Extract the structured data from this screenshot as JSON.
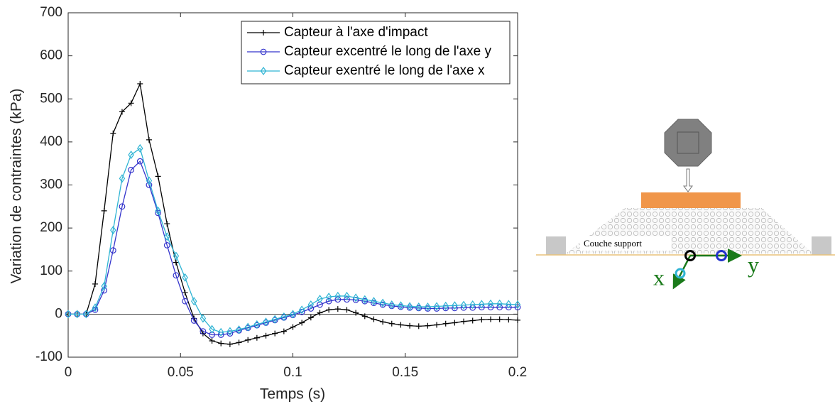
{
  "chart_data": {
    "type": "line",
    "xlabel": "Temps (s)",
    "ylabel": "Variation de contraintes (kPa)",
    "xlim": [
      0,
      0.2
    ],
    "ylim": [
      -100,
      700
    ],
    "xticks": [
      0,
      0.05,
      0.1,
      0.15,
      0.2
    ],
    "yticks": [
      -100,
      0,
      100,
      200,
      300,
      400,
      500,
      600,
      700
    ],
    "legend": "top-right",
    "x": [
      0,
      0.004,
      0.008,
      0.012,
      0.016,
      0.02,
      0.024,
      0.028,
      0.032,
      0.036,
      0.04,
      0.044,
      0.048,
      0.052,
      0.056,
      0.06,
      0.064,
      0.068,
      0.072,
      0.076,
      0.08,
      0.084,
      0.088,
      0.092,
      0.096,
      0.1,
      0.104,
      0.108,
      0.112,
      0.116,
      0.12,
      0.124,
      0.128,
      0.132,
      0.136,
      0.14,
      0.144,
      0.148,
      0.152,
      0.156,
      0.16,
      0.164,
      0.168,
      0.172,
      0.176,
      0.18,
      0.184,
      0.188,
      0.192,
      0.196,
      0.2
    ],
    "series": [
      {
        "name": "Capteur à l'axe d'impact",
        "color": "#000000",
        "marker": "+",
        "values": [
          0,
          0,
          0,
          70,
          240,
          420,
          470,
          490,
          535,
          405,
          320,
          210,
          120,
          50,
          -10,
          -45,
          -62,
          -68,
          -70,
          -66,
          -60,
          -55,
          -50,
          -45,
          -40,
          -30,
          -20,
          -8,
          3,
          10,
          12,
          10,
          3,
          -5,
          -12,
          -18,
          -22,
          -25,
          -27,
          -28,
          -27,
          -25,
          -22,
          -20,
          -17,
          -15,
          -13,
          -12,
          -12,
          -13,
          -14
        ]
      },
      {
        "name": "Capteur excentré le long de l'axe y",
        "color": "#3535cc",
        "marker": "o",
        "values": [
          0,
          0,
          0,
          10,
          55,
          148,
          250,
          335,
          355,
          300,
          235,
          160,
          90,
          30,
          -15,
          -40,
          -48,
          -48,
          -45,
          -38,
          -32,
          -26,
          -20,
          -14,
          -8,
          -2,
          5,
          13,
          22,
          30,
          34,
          34,
          33,
          30,
          26,
          22,
          19,
          17,
          15,
          14,
          13,
          13,
          14,
          14,
          15,
          15,
          16,
          16,
          16,
          16,
          16
        ]
      },
      {
        "name": "Capteur exentré le long de l'axe x",
        "color": "#2fb4d4",
        "marker": "d",
        "values": [
          0,
          0,
          0,
          15,
          65,
          195,
          315,
          370,
          385,
          310,
          240,
          180,
          135,
          85,
          30,
          -10,
          -35,
          -42,
          -40,
          -36,
          -30,
          -24,
          -18,
          -12,
          -6,
          0,
          10,
          22,
          35,
          40,
          42,
          42,
          38,
          34,
          30,
          26,
          22,
          20,
          18,
          17,
          17,
          18,
          19,
          20,
          21,
          22,
          23,
          24,
          24,
          23,
          22
        ]
      }
    ]
  },
  "diagram": {
    "label": "Couche support",
    "axis_x": "x",
    "axis_y": "y"
  }
}
